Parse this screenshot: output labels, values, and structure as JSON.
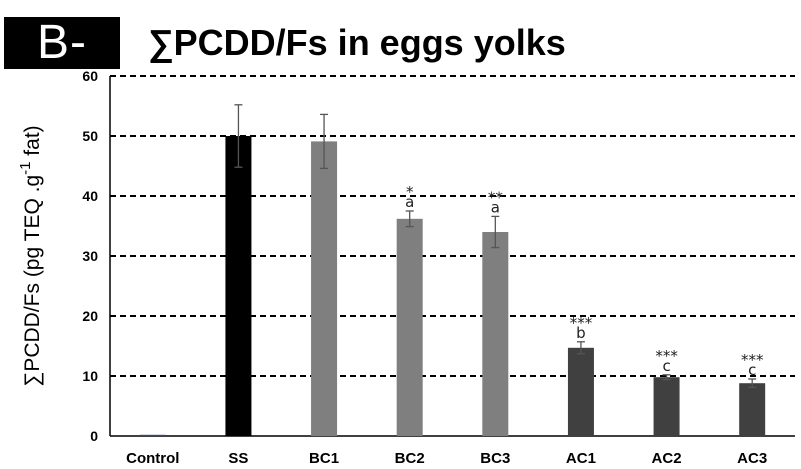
{
  "panel_label": "B-",
  "chart_data": {
    "type": "bar",
    "title": "∑PCDD/Fs in eggs yolks",
    "ylabel": "∑PCDD/Fs (pg TEQ .g",
    "ylabel_sup": "-1",
    "ylabel_tail": " fat)",
    "xlabel": "",
    "ylim": [
      0,
      60
    ],
    "yticks": [
      "0",
      "10",
      "20",
      "30",
      "40",
      "50",
      "60"
    ],
    "grid": "horizontal dashed",
    "categories": [
      "Control",
      "SS",
      "BC1",
      "BC2",
      "BC3",
      "AC1",
      "AC2",
      "AC3"
    ],
    "values": [
      0.2,
      50.0,
      49.1,
      36.2,
      34.0,
      14.7,
      9.8,
      8.8
    ],
    "error": [
      0.1,
      5.2,
      4.5,
      1.3,
      2.6,
      1.0,
      0.4,
      0.7
    ],
    "bar_colors": [
      "#1f4e99",
      "#000000",
      "#7f7f7f",
      "#7f7f7f",
      "#7f7f7f",
      "#404040",
      "#404040",
      "#404040"
    ],
    "significance": [
      "",
      "",
      "",
      "*",
      "**",
      "***",
      "***",
      "***"
    ],
    "letters": [
      "",
      "",
      "",
      "a",
      "a",
      "b",
      "c",
      "c"
    ]
  }
}
